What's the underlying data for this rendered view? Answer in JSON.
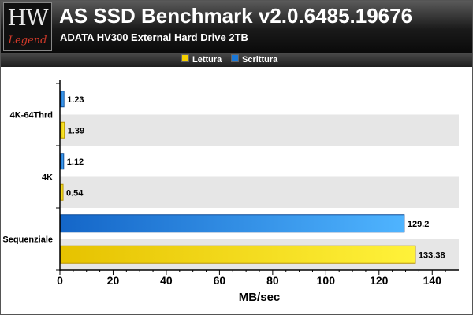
{
  "header": {
    "logo_main": "HW",
    "logo_sub": "Legend",
    "title": "AS SSD Benchmark v2.0.6485.19676",
    "subtitle": "ADATA HV300 External Hard Drive 2TB"
  },
  "colors": {
    "lettura": "#f5d000",
    "scrittura": "#1a78d8",
    "band": "#e6e6e6"
  },
  "chart_data": {
    "type": "bar",
    "orientation": "horizontal",
    "categories": [
      "4K-64Thrd",
      "4K",
      "Sequenziale"
    ],
    "series": [
      {
        "name": "Scrittura",
        "values": [
          1.23,
          1.12,
          129.2
        ],
        "labels": [
          "1.23",
          "1.12",
          "129.2"
        ]
      },
      {
        "name": "Lettura",
        "values": [
          1.39,
          0.54,
          133.38
        ],
        "labels": [
          "1.39",
          "0.54",
          "133.38"
        ]
      }
    ],
    "legend_order": [
      "Lettura",
      "Scrittura"
    ],
    "xlabel": "MB/sec",
    "xlim": [
      0,
      150
    ],
    "xticks": [
      0,
      20,
      40,
      60,
      80,
      100,
      120,
      140
    ],
    "legend_position": "top",
    "grid": false
  }
}
